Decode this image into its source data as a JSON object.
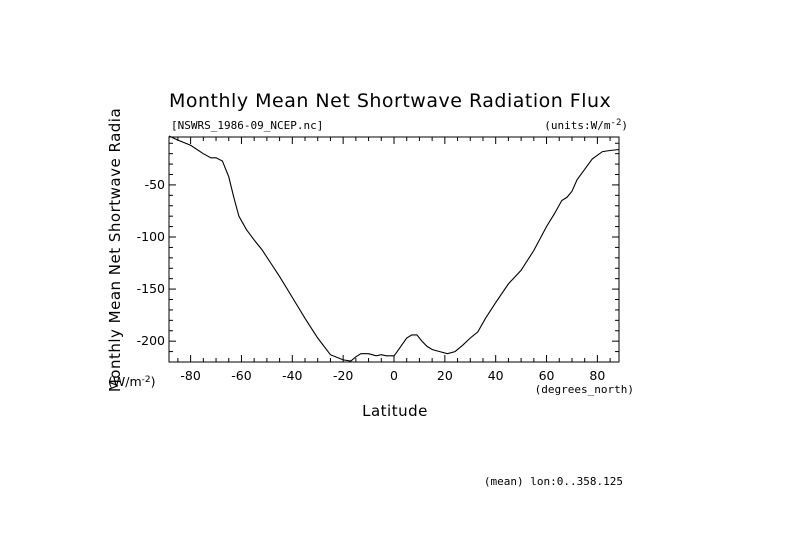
{
  "chart_data": {
    "type": "line",
    "title": "Monthly Mean Net Shortwave Radiation Flux",
    "file_label": "[NSWRS_1986-09_NCEP.nc]",
    "units_label": "(units:W/m^-2)",
    "xlabel": "Latitude",
    "x_units": "(degrees_north)",
    "ylabel": "Monthly Mean Net Shortwave Radia",
    "y_units": "(W/m^-2)",
    "footer": "(mean) lon:0..358.125",
    "xlim": [
      -88.5,
      88.5
    ],
    "ylim": [
      -220,
      -4
    ],
    "x_ticks": [
      -80,
      -60,
      -40,
      -20,
      0,
      20,
      40,
      60,
      80
    ],
    "y_ticks": [
      -50,
      -100,
      -150,
      -200
    ],
    "grid": false,
    "series": [
      {
        "x": [
          -88.5,
          -85,
          -80,
          -75,
          -72,
          -70,
          -67.5,
          -65,
          -63,
          -61,
          -58,
          -55,
          -52,
          -49,
          -45,
          -40,
          -35,
          -30,
          -25,
          -20,
          -17,
          -15,
          -13,
          -10,
          -7,
          -5,
          -3,
          -1,
          0,
          1,
          3,
          5,
          7,
          9,
          11,
          13,
          15,
          18,
          21,
          24,
          27,
          30,
          33,
          36,
          40,
          45,
          50,
          55,
          60,
          63,
          66,
          68,
          70,
          72,
          75,
          78,
          82,
          85,
          88.5
        ],
        "y": [
          -3,
          -7,
          -12,
          -20,
          -24,
          -24,
          -27,
          -42,
          -62,
          -80,
          -93,
          -103,
          -112,
          -123,
          -138,
          -158,
          -178,
          -197,
          -213,
          -218,
          -219,
          -215,
          -212,
          -212,
          -214,
          -213,
          -214,
          -214,
          -214,
          -211,
          -204,
          -197,
          -194,
          -194,
          -200,
          -205,
          -208,
          -210,
          -212,
          -210,
          -204,
          -197,
          -191,
          -178,
          -163,
          -145,
          -132,
          -113,
          -90,
          -78,
          -65,
          -62,
          -56,
          -45,
          -35,
          -25,
          -18,
          -17,
          -16
        ]
      }
    ]
  }
}
